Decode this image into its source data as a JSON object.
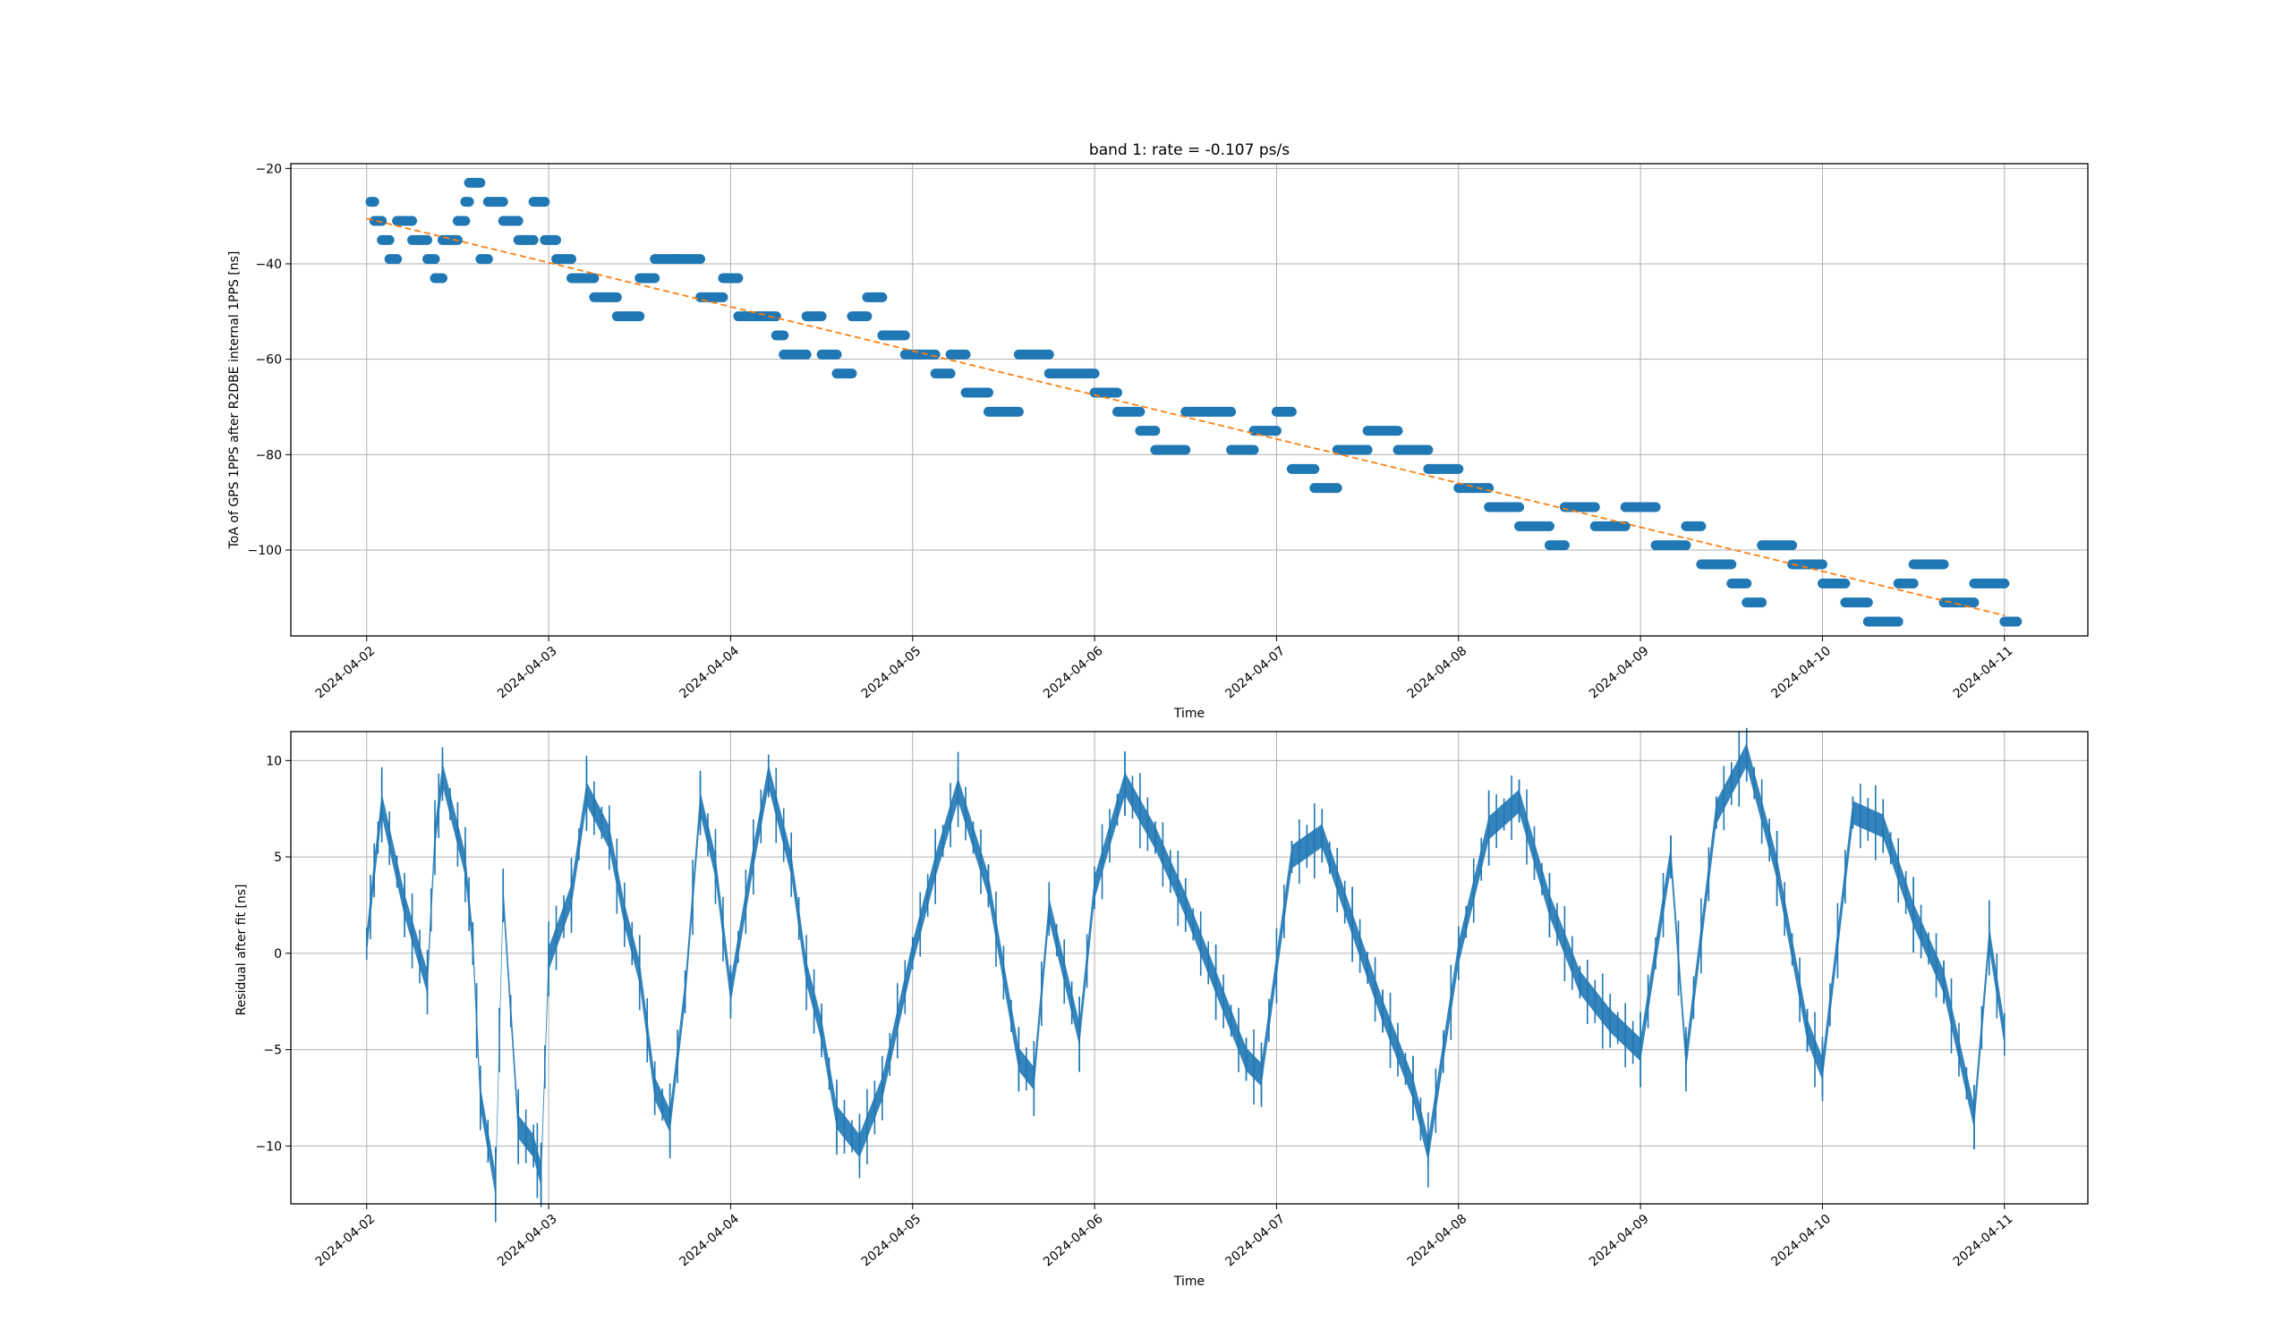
{
  "figure": {
    "title": "band 1: rate = -0.107 ps/s"
  },
  "chart_data": [
    {
      "type": "scatter",
      "title": "band 1: rate = -0.107 ps/s",
      "xlabel": "Time",
      "ylabel": "ToA of GPS 1PPS after R2DBE internal 1PPS [ns]",
      "x_ticks": [
        "2024-04-02",
        "2024-04-03",
        "2024-04-04",
        "2024-04-05",
        "2024-04-06",
        "2024-04-07",
        "2024-04-08",
        "2024-04-09",
        "2024-04-10",
        "2024-04-11"
      ],
      "y_ticks": [
        -20,
        -40,
        -60,
        -80,
        -100
      ],
      "xlim": [
        "2024-04-01T14:00",
        "2024-04-11T11:00"
      ],
      "ylim": [
        -118,
        -19
      ],
      "grid": true,
      "quantization_ns": 4,
      "series": [
        {
          "color": "#1f77b4",
          "points": [
            [
              "2024-04-02T00:30",
              -27
            ],
            [
              "2024-04-02T01:00",
              -31
            ],
            [
              "2024-04-02T02:00",
              -35
            ],
            [
              "2024-04-02T03:00",
              -39
            ],
            [
              "2024-04-02T04:00",
              -31
            ],
            [
              "2024-04-02T06:00",
              -35
            ],
            [
              "2024-04-02T08:00",
              -39
            ],
            [
              "2024-04-02T09:00",
              -43
            ],
            [
              "2024-04-02T10:00",
              -35
            ],
            [
              "2024-04-02T12:00",
              -31
            ],
            [
              "2024-04-02T13:00",
              -27
            ],
            [
              "2024-04-02T13:30",
              -23
            ],
            [
              "2024-04-02T15:00",
              -39
            ],
            [
              "2024-04-02T16:00",
              -27
            ],
            [
              "2024-04-02T18:00",
              -31
            ],
            [
              "2024-04-02T20:00",
              -35
            ],
            [
              "2024-04-02T22:00",
              -27
            ],
            [
              "2024-04-02T23:30",
              -35
            ],
            [
              "2024-04-03T01:00",
              -39
            ],
            [
              "2024-04-03T03:00",
              -43
            ],
            [
              "2024-04-03T06:00",
              -47
            ],
            [
              "2024-04-03T09:00",
              -51
            ],
            [
              "2024-04-03T12:00",
              -43
            ],
            [
              "2024-04-03T14:00",
              -39
            ],
            [
              "2024-04-03T17:00",
              -39
            ],
            [
              "2024-04-03T20:00",
              -47
            ],
            [
              "2024-04-03T23:00",
              -43
            ],
            [
              "2024-04-04T01:00",
              -51
            ],
            [
              "2024-04-04T04:00",
              -51
            ],
            [
              "2024-04-04T06:00",
              -55
            ],
            [
              "2024-04-04T07:00",
              -59
            ],
            [
              "2024-04-04T10:00",
              -51
            ],
            [
              "2024-04-04T12:00",
              -59
            ],
            [
              "2024-04-04T14:00",
              -63
            ],
            [
              "2024-04-04T16:00",
              -51
            ],
            [
              "2024-04-04T18:00",
              -47
            ],
            [
              "2024-04-04T20:00",
              -55
            ],
            [
              "2024-04-04T23:00",
              -59
            ],
            [
              "2024-04-05T01:00",
              -59
            ],
            [
              "2024-04-05T03:00",
              -63
            ],
            [
              "2024-04-05T05:00",
              -59
            ],
            [
              "2024-04-05T07:00",
              -67
            ],
            [
              "2024-04-05T10:00",
              -71
            ],
            [
              "2024-04-05T14:00",
              -59
            ],
            [
              "2024-04-05T18:00",
              -63
            ],
            [
              "2024-04-06T00:00",
              -67
            ],
            [
              "2024-04-06T03:00",
              -71
            ],
            [
              "2024-04-06T06:00",
              -75
            ],
            [
              "2024-04-06T08:00",
              -79
            ],
            [
              "2024-04-06T12:00",
              -71
            ],
            [
              "2024-04-06T15:00",
              -71
            ],
            [
              "2024-04-06T18:00",
              -79
            ],
            [
              "2024-04-06T21:00",
              -75
            ],
            [
              "2024-04-07T00:00",
              -71
            ],
            [
              "2024-04-07T02:00",
              -83
            ],
            [
              "2024-04-07T05:00",
              -87
            ],
            [
              "2024-04-07T08:00",
              -79
            ],
            [
              "2024-04-07T12:00",
              -75
            ],
            [
              "2024-04-07T16:00",
              -79
            ],
            [
              "2024-04-07T20:00",
              -83
            ],
            [
              "2024-04-08T00:00",
              -87
            ],
            [
              "2024-04-08T04:00",
              -91
            ],
            [
              "2024-04-08T08:00",
              -95
            ],
            [
              "2024-04-08T12:00",
              -99
            ],
            [
              "2024-04-08T14:00",
              -91
            ],
            [
              "2024-04-08T18:00",
              -95
            ],
            [
              "2024-04-08T22:00",
              -91
            ],
            [
              "2024-04-09T02:00",
              -99
            ],
            [
              "2024-04-09T06:00",
              -95
            ],
            [
              "2024-04-09T08:00",
              -103
            ],
            [
              "2024-04-09T12:00",
              -107
            ],
            [
              "2024-04-09T14:00",
              -111
            ],
            [
              "2024-04-09T16:00",
              -99
            ],
            [
              "2024-04-09T20:00",
              -103
            ],
            [
              "2024-04-10T00:00",
              -107
            ],
            [
              "2024-04-10T03:00",
              -111
            ],
            [
              "2024-04-10T06:00",
              -115
            ],
            [
              "2024-04-10T10:00",
              -107
            ],
            [
              "2024-04-10T12:00",
              -103
            ],
            [
              "2024-04-10T16:00",
              -111
            ],
            [
              "2024-04-10T20:00",
              -107
            ],
            [
              "2024-04-11T00:00",
              -115
            ]
          ]
        },
        {
          "type": "line",
          "style": "dashed",
          "color": "#ff7f0e",
          "points": [
            [
              "2024-04-02T00:00",
              -30.5
            ],
            [
              "2024-04-11T00:00",
              -113.7
            ]
          ]
        }
      ]
    },
    {
      "type": "line",
      "title": "",
      "xlabel": "Time",
      "ylabel": "Residual after fit [ns]",
      "x_ticks": [
        "2024-04-02",
        "2024-04-03",
        "2024-04-04",
        "2024-04-05",
        "2024-04-06",
        "2024-04-07",
        "2024-04-08",
        "2024-04-09",
        "2024-04-10",
        "2024-04-11"
      ],
      "y_ticks": [
        10,
        5,
        0,
        -5,
        -10
      ],
      "xlim": [
        "2024-04-01T14:00",
        "2024-04-11T11:00"
      ],
      "ylim": [
        -13,
        11.5
      ],
      "grid": true,
      "series": [
        {
          "color": "#1f77b4",
          "points": [
            [
              "2024-04-02T00:00",
              0.5
            ],
            [
              "2024-04-02T01:00",
              4.3
            ],
            [
              "2024-04-02T02:00",
              7.7
            ],
            [
              "2024-04-02T05:00",
              2.5
            ],
            [
              "2024-04-02T08:00",
              -1.5
            ],
            [
              "2024-04-02T09:00",
              6.0
            ],
            [
              "2024-04-02T10:00",
              9.3
            ],
            [
              "2024-04-02T13:00",
              4.6
            ],
            [
              "2024-04-02T14:00",
              0.5
            ],
            [
              "2024-04-02T15:00",
              -7.5
            ],
            [
              "2024-04-02T17:00",
              -12.0
            ],
            [
              "2024-04-02T18:00",
              3.0
            ],
            [
              "2024-04-02T20:00",
              -9.0
            ],
            [
              "2024-04-02T22:00",
              -10.0
            ],
            [
              "2024-04-02T23:00",
              -11.5
            ],
            [
              "2024-04-03T00:00",
              -0.3
            ],
            [
              "2024-04-03T03:00",
              3.0
            ],
            [
              "2024-04-03T05:00",
              8.3
            ],
            [
              "2024-04-03T08:00",
              6.0
            ],
            [
              "2024-04-03T10:00",
              2.0
            ],
            [
              "2024-04-03T12:00",
              -1.0
            ],
            [
              "2024-04-03T14:00",
              -7.0
            ],
            [
              "2024-04-03T16:00",
              -8.7
            ],
            [
              "2024-04-03T18:00",
              -2.0
            ],
            [
              "2024-04-03T20:00",
              7.8
            ],
            [
              "2024-04-03T22:00",
              4.5
            ],
            [
              "2024-04-04T00:00",
              -2.0
            ],
            [
              "2024-04-04T03:00",
              5.0
            ],
            [
              "2024-04-04T05:00",
              9.2
            ],
            [
              "2024-04-04T08:00",
              4.6
            ],
            [
              "2024-04-04T10:00",
              -1.0
            ],
            [
              "2024-04-04T12:00",
              -4.0
            ],
            [
              "2024-04-04T14:00",
              -8.5
            ],
            [
              "2024-04-04T17:00",
              -10.0
            ],
            [
              "2024-04-04T20:00",
              -7.0
            ],
            [
              "2024-04-05T00:00",
              0.0
            ],
            [
              "2024-04-05T03:00",
              4.5
            ],
            [
              "2024-04-05T06:00",
              8.5
            ],
            [
              "2024-04-05T10:00",
              3.5
            ],
            [
              "2024-04-05T14:00",
              -5.5
            ],
            [
              "2024-04-05T16:00",
              -6.5
            ],
            [
              "2024-04-05T18:00",
              2.3
            ],
            [
              "2024-04-05T22:00",
              -4.2
            ],
            [
              "2024-04-06T00:00",
              3.4
            ],
            [
              "2024-04-06T04:00",
              8.8
            ],
            [
              "2024-04-06T08:00",
              6.0
            ],
            [
              "2024-04-06T12:00",
              2.5
            ],
            [
              "2024-04-06T16:00",
              -1.5
            ],
            [
              "2024-04-06T20:00",
              -5.5
            ],
            [
              "2024-04-06T22:00",
              -6.3
            ],
            [
              "2024-04-07T02:00",
              5.0
            ],
            [
              "2024-04-07T06:00",
              6.1
            ],
            [
              "2024-04-07T10:00",
              1.5
            ],
            [
              "2024-04-07T14:00",
              -3.0
            ],
            [
              "2024-04-07T18:00",
              -7.0
            ],
            [
              "2024-04-07T20:00",
              -10.2
            ],
            [
              "2024-04-08T00:00",
              0.0
            ],
            [
              "2024-04-08T04:00",
              6.5
            ],
            [
              "2024-04-08T08:00",
              7.9
            ],
            [
              "2024-04-08T12:00",
              2.5
            ],
            [
              "2024-04-08T16:00",
              -1.5
            ],
            [
              "2024-04-08T20:00",
              -3.5
            ],
            [
              "2024-04-09T00:00",
              -5.0
            ],
            [
              "2024-04-09T04:00",
              5.0
            ],
            [
              "2024-04-09T06:00",
              -5.5
            ],
            [
              "2024-04-09T10:00",
              7.3
            ],
            [
              "2024-04-09T14:00",
              10.3
            ],
            [
              "2024-04-09T18:00",
              4.4
            ],
            [
              "2024-04-09T22:00",
              -4.0
            ],
            [
              "2024-04-10T00:00",
              -6.0
            ],
            [
              "2024-04-10T04:00",
              7.3
            ],
            [
              "2024-04-10T08:00",
              6.6
            ],
            [
              "2024-04-10T12:00",
              2.0
            ],
            [
              "2024-04-10T16:00",
              -1.5
            ],
            [
              "2024-04-10T20:00",
              -8.5
            ],
            [
              "2024-04-10T22:00",
              0.8
            ],
            [
              "2024-04-11T00:00",
              -4.2
            ]
          ]
        }
      ]
    }
  ]
}
